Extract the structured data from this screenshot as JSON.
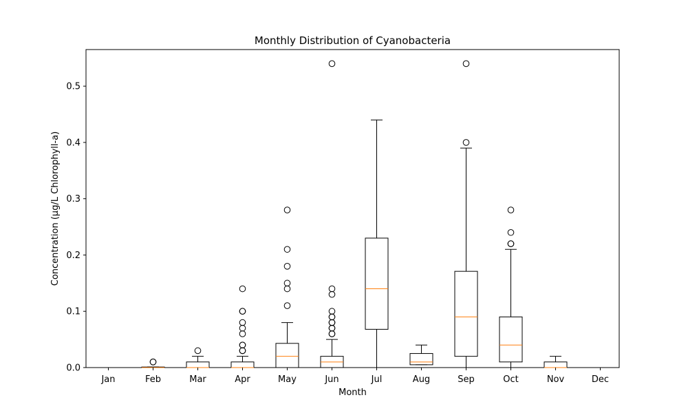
{
  "chart_data": {
    "type": "box",
    "title": "Monthly Distribution of Cyanobacteria",
    "xlabel": "Month",
    "ylabel": "Concentration (µg/L Chlorophyll-a)",
    "ylim": [
      0,
      0.565
    ],
    "yticks": [
      0.0,
      0.1,
      0.2,
      0.3,
      0.4,
      0.5
    ],
    "ytick_labels": [
      "0.0",
      "0.1",
      "0.2",
      "0.3",
      "0.4",
      "0.5"
    ],
    "grid": false,
    "colors": {
      "box": "#000000",
      "median": "#ff7f0e",
      "flier": "#000000"
    },
    "categories": [
      "Jan",
      "Feb",
      "Mar",
      "Apr",
      "May",
      "Jun",
      "Jul",
      "Aug",
      "Sep",
      "Oct",
      "Nov",
      "Dec"
    ],
    "boxes": [
      {
        "month": "Jan",
        "empty": true
      },
      {
        "month": "Feb",
        "whislo": 0,
        "q1": 0,
        "med": 0,
        "q3": 0.001,
        "whishi": 0.001,
        "fliers": [
          0.01,
          0.01
        ]
      },
      {
        "month": "Mar",
        "whislo": 0,
        "q1": 0,
        "med": 0,
        "q3": 0.01,
        "whishi": 0.02,
        "fliers": [
          0.03
        ]
      },
      {
        "month": "Apr",
        "whislo": 0,
        "q1": 0,
        "med": 0,
        "q3": 0.01,
        "whishi": 0.02,
        "fliers": [
          0.03,
          0.03,
          0.04,
          0.04,
          0.06,
          0.07,
          0.08,
          0.1,
          0.1,
          0.14
        ]
      },
      {
        "month": "May",
        "whislo": 0,
        "q1": 0,
        "med": 0.02,
        "q3": 0.043,
        "whishi": 0.08,
        "fliers": [
          0.11,
          0.14,
          0.15,
          0.18,
          0.21,
          0.28
        ]
      },
      {
        "month": "Jun",
        "whislo": 0,
        "q1": 0,
        "med": 0.01,
        "q3": 0.02,
        "whishi": 0.05,
        "fliers": [
          0.06,
          0.06,
          0.07,
          0.07,
          0.08,
          0.08,
          0.09,
          0.09,
          0.1,
          0.13,
          0.14,
          0.54
        ]
      },
      {
        "month": "Jul",
        "whislo": 0,
        "q1": 0.068,
        "med": 0.14,
        "q3": 0.23,
        "whishi": 0.44,
        "fliers": []
      },
      {
        "month": "Aug",
        "whislo": 0.005,
        "q1": 0.005,
        "med": 0.01,
        "q3": 0.025,
        "whishi": 0.04,
        "fliers": []
      },
      {
        "month": "Sep",
        "whislo": 0,
        "q1": 0.02,
        "med": 0.09,
        "q3": 0.171,
        "whishi": 0.39,
        "fliers": [
          0.4,
          0.54
        ]
      },
      {
        "month": "Oct",
        "whislo": 0,
        "q1": 0.01,
        "med": 0.04,
        "q3": 0.09,
        "whishi": 0.21,
        "fliers": [
          0.22,
          0.22,
          0.24,
          0.28
        ]
      },
      {
        "month": "Nov",
        "whislo": 0,
        "q1": 0,
        "med": 0,
        "q3": 0.01,
        "whishi": 0.02,
        "fliers": []
      },
      {
        "month": "Dec",
        "empty": true
      }
    ]
  }
}
